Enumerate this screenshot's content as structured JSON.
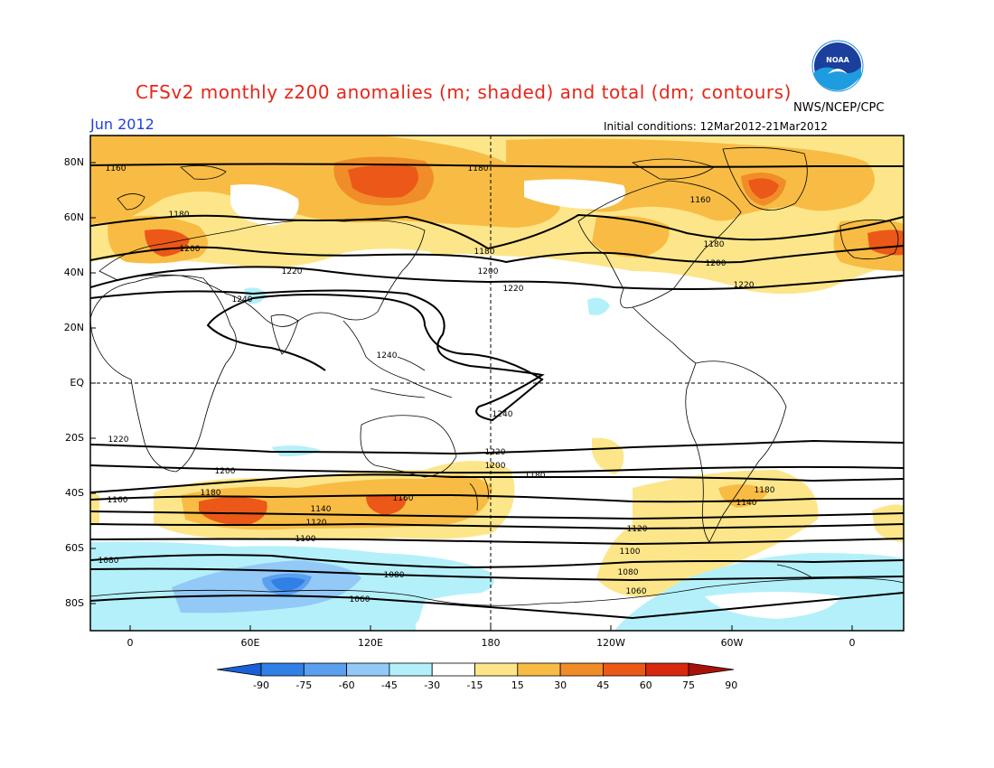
{
  "header": {
    "title": "CFSv2 monthly z200 anomalies (m; shaded) and total (dm; contours)",
    "agency": "NWS/NCEP/CPC",
    "month": "Jun 2012",
    "initial_conditions": "Initial conditions: 12Mar2012-21Mar2012",
    "logo_text": "NOAA"
  },
  "axes": {
    "lat_labels": [
      "80N",
      "60N",
      "40N",
      "20N",
      "EQ",
      "20S",
      "40S",
      "60S",
      "80S"
    ],
    "lon_labels": [
      "0",
      "60E",
      "120E",
      "180",
      "120W",
      "60W",
      "0"
    ]
  },
  "contour_labels": [
    "1160",
    "1180",
    "1160",
    "1180",
    "1180",
    "1200",
    "1220",
    "1180",
    "1200",
    "1220",
    "1200",
    "1220",
    "1240",
    "1240",
    "1240",
    "1220",
    "1220",
    "1200",
    "1200",
    "1180",
    "1180",
    "1180",
    "1160",
    "1160",
    "1140",
    "1140",
    "1120",
    "1120",
    "1100",
    "1100",
    "1080",
    "1080",
    "1080",
    "1060",
    "1060"
  ],
  "colorbar": {
    "labels": [
      "-90",
      "-75",
      "-60",
      "-45",
      "-30",
      "-15",
      "15",
      "30",
      "45",
      "60",
      "75",
      "90"
    ],
    "colors": [
      "#1a5fd6",
      "#3180e6",
      "#5b9fef",
      "#93c9f6",
      "#b4f0fa",
      "#ffffff",
      "#fde68a",
      "#f8bc44",
      "#f08d28",
      "#ec5818",
      "#d8280e",
      "#a81208"
    ]
  }
}
